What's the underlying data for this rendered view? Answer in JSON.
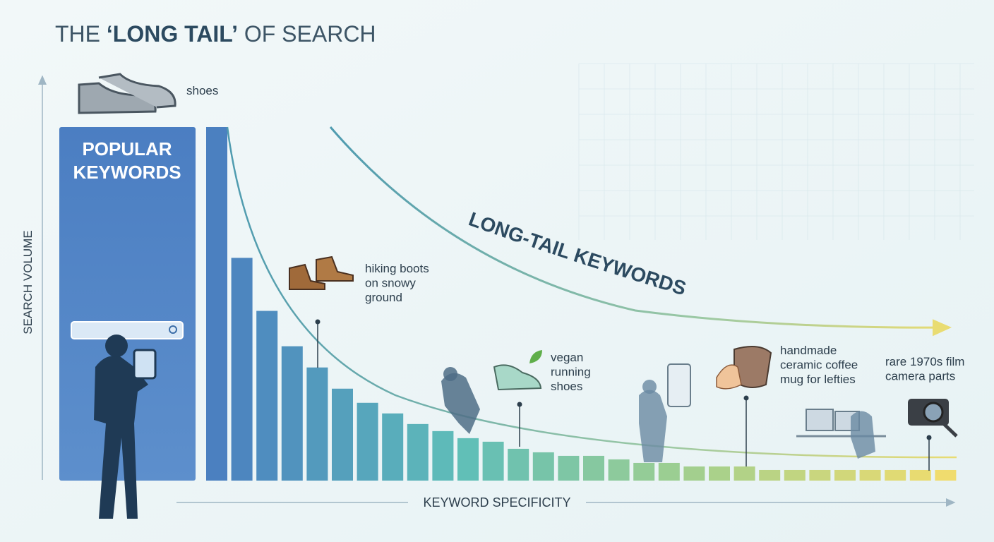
{
  "title": {
    "parts": [
      "THE ",
      "‘LONG TAIL’",
      " OF SEARCH"
    ]
  },
  "axes": {
    "y_label": "SEARCH VOLUME",
    "x_label": "KEYWORD SPECIFICITY"
  },
  "popular": {
    "lines": [
      "POPULAR",
      "KEYWORDS"
    ]
  },
  "long_tail_label": "LONG-TAIL KEYWORDS",
  "head_keyword": "shoes",
  "keywords": [
    {
      "lines": [
        "hiking boots",
        "on snowy",
        "ground"
      ]
    },
    {
      "lines": [
        "vegan",
        "running",
        "shoes"
      ]
    },
    {
      "lines": [
        "handmade",
        "ceramic coffee",
        "mug for lefties"
      ]
    },
    {
      "lines": [
        "rare 1970s film",
        "camera parts"
      ]
    }
  ],
  "bars": {
    "values": [
      100,
      63,
      48,
      38,
      32,
      26,
      22,
      19,
      16,
      14,
      12,
      11,
      9,
      8,
      7,
      7,
      6,
      5,
      5,
      4,
      4,
      4,
      3,
      3,
      3,
      3,
      3,
      3,
      3,
      3
    ]
  }
}
